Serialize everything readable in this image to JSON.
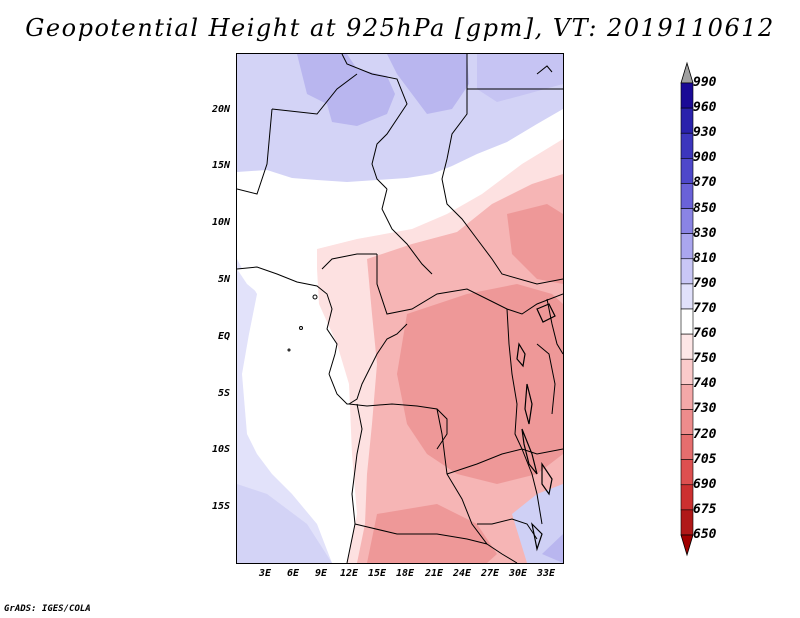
{
  "title": "Geopotential Height at 925hPa [gpm], VT: 2019110612",
  "footer": "GrADS: IGES/COLA",
  "lat_labels": [
    "20N",
    "15N",
    "10N",
    "5N",
    "EQ",
    "5S",
    "10S",
    "15S"
  ],
  "lon_labels": [
    "3E",
    "6E",
    "9E",
    "12E",
    "15E",
    "18E",
    "21E",
    "24E",
    "27E",
    "30E",
    "33E"
  ],
  "colorbar": {
    "levels": [
      "990",
      "960",
      "930",
      "900",
      "870",
      "850",
      "830",
      "810",
      "790",
      "770",
      "760",
      "750",
      "740",
      "730",
      "720",
      "705",
      "690",
      "675",
      "650"
    ],
    "colors": [
      "#a0a0a0",
      "#1a0a96",
      "#2a22ac",
      "#3c36bd",
      "#4e48ca",
      "#6a62d8",
      "#8a84e4",
      "#aaa6ee",
      "#c9c7f6",
      "#e1e1fb",
      "#ffffff",
      "#fde6e6",
      "#fbcaca",
      "#f4a8a8",
      "#ed8c8c",
      "#e56e6e",
      "#dd5050",
      "#cc3030",
      "#b01818",
      "#a00000"
    ]
  },
  "map": {
    "regions": {
      "north_fill": "#d3d3f6",
      "north_dark": "#b9b6ef",
      "ocean_pale": "#e2e2fa",
      "land_pink_light": "#fde1e1",
      "land_pink_mid": "#f6b5b5",
      "land_pink_dark": "#ee9898",
      "se_blue": "#cfd0f5"
    }
  }
}
